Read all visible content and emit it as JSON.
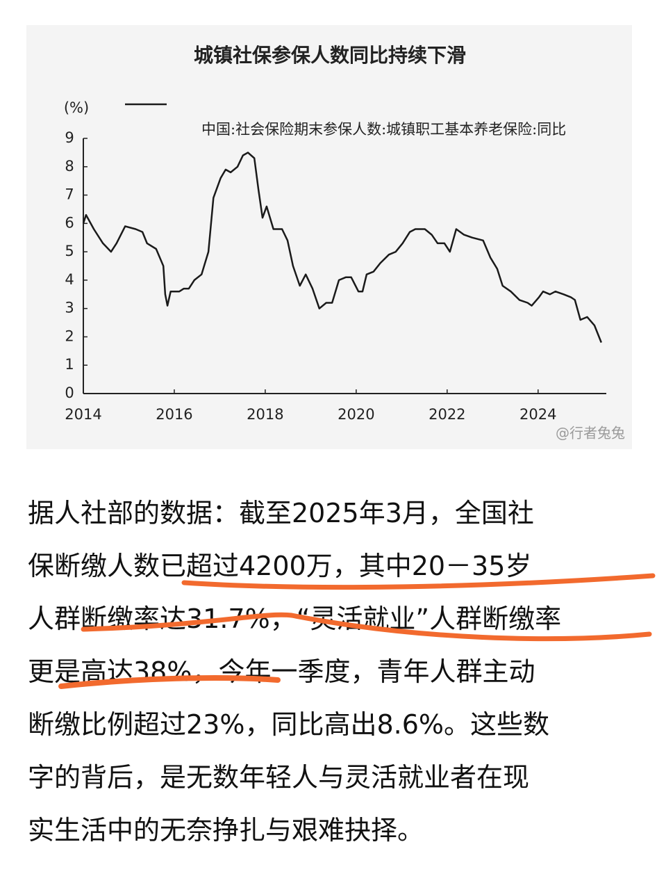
{
  "chart_data": {
    "type": "line",
    "title": "城镇社保参保人数同比持续下滑",
    "y_label": "(%)",
    "watermark": "@行者兔兔",
    "x": [
      2014.0,
      2014.06,
      2014.23,
      2014.43,
      2014.61,
      2014.73,
      2014.92,
      2015.15,
      2015.3,
      2015.4,
      2015.6,
      2015.76,
      2015.8,
      2015.85,
      2015.92,
      2016.11,
      2016.21,
      2016.32,
      2016.44,
      2016.6,
      2016.75,
      2016.86,
      2017.02,
      2017.13,
      2017.24,
      2017.39,
      2017.51,
      2017.62,
      2017.76,
      2017.85,
      2017.94,
      2018.03,
      2018.18,
      2018.37,
      2018.49,
      2018.61,
      2018.76,
      2018.89,
      2019.04,
      2019.19,
      2019.34,
      2019.47,
      2019.62,
      2019.77,
      2019.89,
      2020.05,
      2020.14,
      2020.23,
      2020.38,
      2020.53,
      2020.72,
      2020.87,
      2021.02,
      2021.18,
      2021.3,
      2021.51,
      2021.66,
      2021.79,
      2021.94,
      2022.06,
      2022.2,
      2022.37,
      2022.55,
      2022.79,
      2022.95,
      2023.1,
      2023.22,
      2023.4,
      2023.59,
      2023.77,
      2023.86,
      2024.02,
      2024.11,
      2024.26,
      2024.38,
      2024.56,
      2024.72,
      2024.81,
      2024.93,
      2025.08,
      2025.24,
      2025.39
    ],
    "series": [
      {
        "name": "中国:社会保险期末参保人数:城镇职工基本养老保险:同比",
        "color": "#1a1a1a",
        "values": [
          6.0,
          6.3,
          5.8,
          5.3,
          5.0,
          5.3,
          5.9,
          5.8,
          5.7,
          5.3,
          5.1,
          4.5,
          3.5,
          3.1,
          3.6,
          3.6,
          3.7,
          3.7,
          4.0,
          4.2,
          5.0,
          6.9,
          7.6,
          7.9,
          7.8,
          8.0,
          8.4,
          8.5,
          8.3,
          7.2,
          6.2,
          6.6,
          5.8,
          5.8,
          5.4,
          4.5,
          3.8,
          4.2,
          3.7,
          3.0,
          3.2,
          3.2,
          4.0,
          4.1,
          4.1,
          3.6,
          3.6,
          4.2,
          4.3,
          4.6,
          4.9,
          5.0,
          5.3,
          5.7,
          5.8,
          5.8,
          5.6,
          5.3,
          5.3,
          5.0,
          5.8,
          5.6,
          5.5,
          5.4,
          4.8,
          4.4,
          3.8,
          3.6,
          3.3,
          3.2,
          3.1,
          3.4,
          3.6,
          3.5,
          3.6,
          3.5,
          3.4,
          3.3,
          2.6,
          2.7,
          2.4,
          1.8
        ]
      }
    ],
    "xlim": [
      2014,
      2025.5
    ],
    "xticks": [
      2014,
      2016,
      2018,
      2020,
      2022,
      2024
    ],
    "ylim": [
      0,
      9
    ],
    "yticks": [
      0,
      1,
      2,
      3,
      4,
      5,
      6,
      7,
      8,
      9
    ]
  },
  "article": {
    "lines": [
      "据人社部的数据：截至2025年3月，全国社",
      "保断缴人数已超过4200万，其中20－35岁",
      "人群断缴率达31.7%，“灵活就业”人群断缴率",
      "更是高达38%，今年一季度，青年人群主动",
      "断缴比例超过23%，同比高出8.6%。这些数",
      "字的背后，是无数年轻人与灵活就业者在现",
      "实生活中的无奈挣扎与艰难抉择。"
    ]
  }
}
